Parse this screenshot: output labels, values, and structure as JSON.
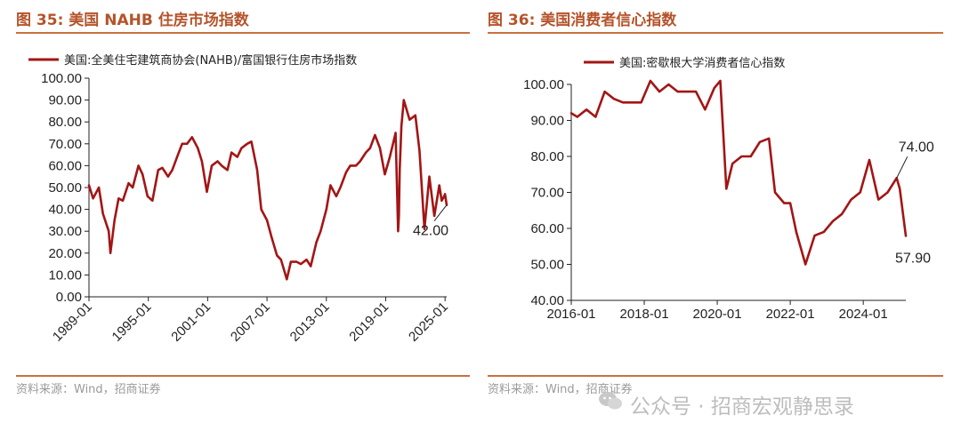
{
  "figures": {
    "left": {
      "title": "图 35:  美国 NAHB 住房市场指数",
      "source": "资料来源：Wind，招商证券"
    },
    "right": {
      "title": "图 36:  美国消费者信心指数",
      "source": "资料来源：Wind，招商证券"
    }
  },
  "watermark": {
    "text": "公众号 · 招商宏观静思录",
    "icon": "wechat-icon"
  },
  "chart_data": [
    {
      "type": "line",
      "legend": "美国:全美住宅建筑商协会(NAHB)/富国银行住房市场指数",
      "series_color": "#a31515",
      "xlim": [
        "1989-01",
        "2025-03"
      ],
      "ylim": [
        0,
        100
      ],
      "yticks": [
        "0.00",
        "10.00",
        "20.00",
        "30.00",
        "40.00",
        "50.00",
        "60.00",
        "70.00",
        "80.00",
        "90.00",
        "100.00"
      ],
      "xticks": [
        "1989-01",
        "1995-01",
        "2001-01",
        "2007-01",
        "2013-01",
        "2019-01",
        "2025-01"
      ],
      "annotation": {
        "label": "42.00",
        "x": "2025-03",
        "y": 42
      },
      "x": [
        "1989-01",
        "1989-06",
        "1990-01",
        "1990-06",
        "1991-01",
        "1991-03",
        "1991-08",
        "1992-01",
        "1992-06",
        "1993-01",
        "1993-06",
        "1994-01",
        "1994-06",
        "1994-12",
        "1995-06",
        "1996-01",
        "1996-06",
        "1997-01",
        "1997-06",
        "1998-01",
        "1998-06",
        "1998-12",
        "1999-06",
        "2000-01",
        "2000-06",
        "2000-12",
        "2001-06",
        "2002-01",
        "2002-06",
        "2003-01",
        "2003-06",
        "2004-01",
        "2004-06",
        "2005-01",
        "2005-06",
        "2006-01",
        "2006-06",
        "2007-01",
        "2007-06",
        "2008-01",
        "2008-06",
        "2009-01",
        "2009-06",
        "2010-01",
        "2010-06",
        "2011-01",
        "2011-06",
        "2012-01",
        "2012-06",
        "2013-01",
        "2013-06",
        "2014-01",
        "2014-06",
        "2015-01",
        "2015-06",
        "2016-01",
        "2016-06",
        "2017-01",
        "2017-06",
        "2017-12",
        "2018-06",
        "2018-12",
        "2019-06",
        "2020-01",
        "2020-04",
        "2020-05",
        "2020-06",
        "2020-08",
        "2020-11",
        "2021-06",
        "2022-01",
        "2022-06",
        "2022-12",
        "2023-06",
        "2023-12",
        "2024-06",
        "2024-09",
        "2024-12",
        "2025-01",
        "2025-03"
      ],
      "y": [
        51,
        45,
        50,
        38,
        30,
        20,
        35,
        45,
        44,
        52,
        50,
        60,
        56,
        46,
        44,
        58,
        59,
        55,
        58,
        65,
        70,
        70,
        73,
        68,
        62,
        48,
        60,
        62,
        60,
        58,
        66,
        64,
        68,
        70,
        71,
        58,
        40,
        35,
        28,
        19,
        17,
        8,
        16,
        16,
        15,
        17,
        14,
        25,
        30,
        40,
        51,
        46,
        50,
        57,
        60,
        60,
        62,
        66,
        68,
        74,
        68,
        56,
        64,
        75,
        30,
        37,
        58,
        78,
        90,
        81,
        83,
        67,
        31,
        55,
        37,
        51,
        44,
        46,
        47,
        42
      ]
    },
    {
      "type": "line",
      "legend": "美国:密歇根大学消费者信心指数",
      "series_color": "#a31515",
      "xlim": [
        "2016-01",
        "2025-03"
      ],
      "ylim": [
        40,
        100
      ],
      "yticks": [
        "40.00",
        "50.00",
        "60.00",
        "70.00",
        "80.00",
        "90.00",
        "100.00"
      ],
      "xticks": [
        "2016-01",
        "2018-01",
        "2020-01",
        "2022-01",
        "2024-01"
      ],
      "annotations": [
        {
          "label": "74.00",
          "x": "2024-12",
          "y": 74
        },
        {
          "label": "57.90",
          "x": "2025-03",
          "y": 57.9
        }
      ],
      "x": [
        "2016-01",
        "2016-03",
        "2016-06",
        "2016-09",
        "2016-12",
        "2017-03",
        "2017-06",
        "2017-09",
        "2017-12",
        "2018-03",
        "2018-06",
        "2018-09",
        "2018-12",
        "2019-03",
        "2019-06",
        "2019-09",
        "2019-12",
        "2020-02",
        "2020-04",
        "2020-06",
        "2020-09",
        "2020-12",
        "2021-03",
        "2021-06",
        "2021-08",
        "2021-11",
        "2022-01",
        "2022-03",
        "2022-06",
        "2022-09",
        "2022-12",
        "2023-03",
        "2023-06",
        "2023-09",
        "2023-12",
        "2024-03",
        "2024-06",
        "2024-09",
        "2024-12",
        "2025-01",
        "2025-03"
      ],
      "y": [
        92,
        91,
        93,
        91,
        98,
        96,
        95,
        95,
        95,
        101,
        98,
        100,
        98,
        98,
        98,
        93,
        99,
        101,
        71,
        78,
        80,
        80,
        84,
        85,
        70,
        67,
        67,
        59,
        50,
        58,
        59,
        62,
        64,
        68,
        70,
        79,
        68,
        70,
        74,
        71,
        57.9
      ]
    }
  ]
}
